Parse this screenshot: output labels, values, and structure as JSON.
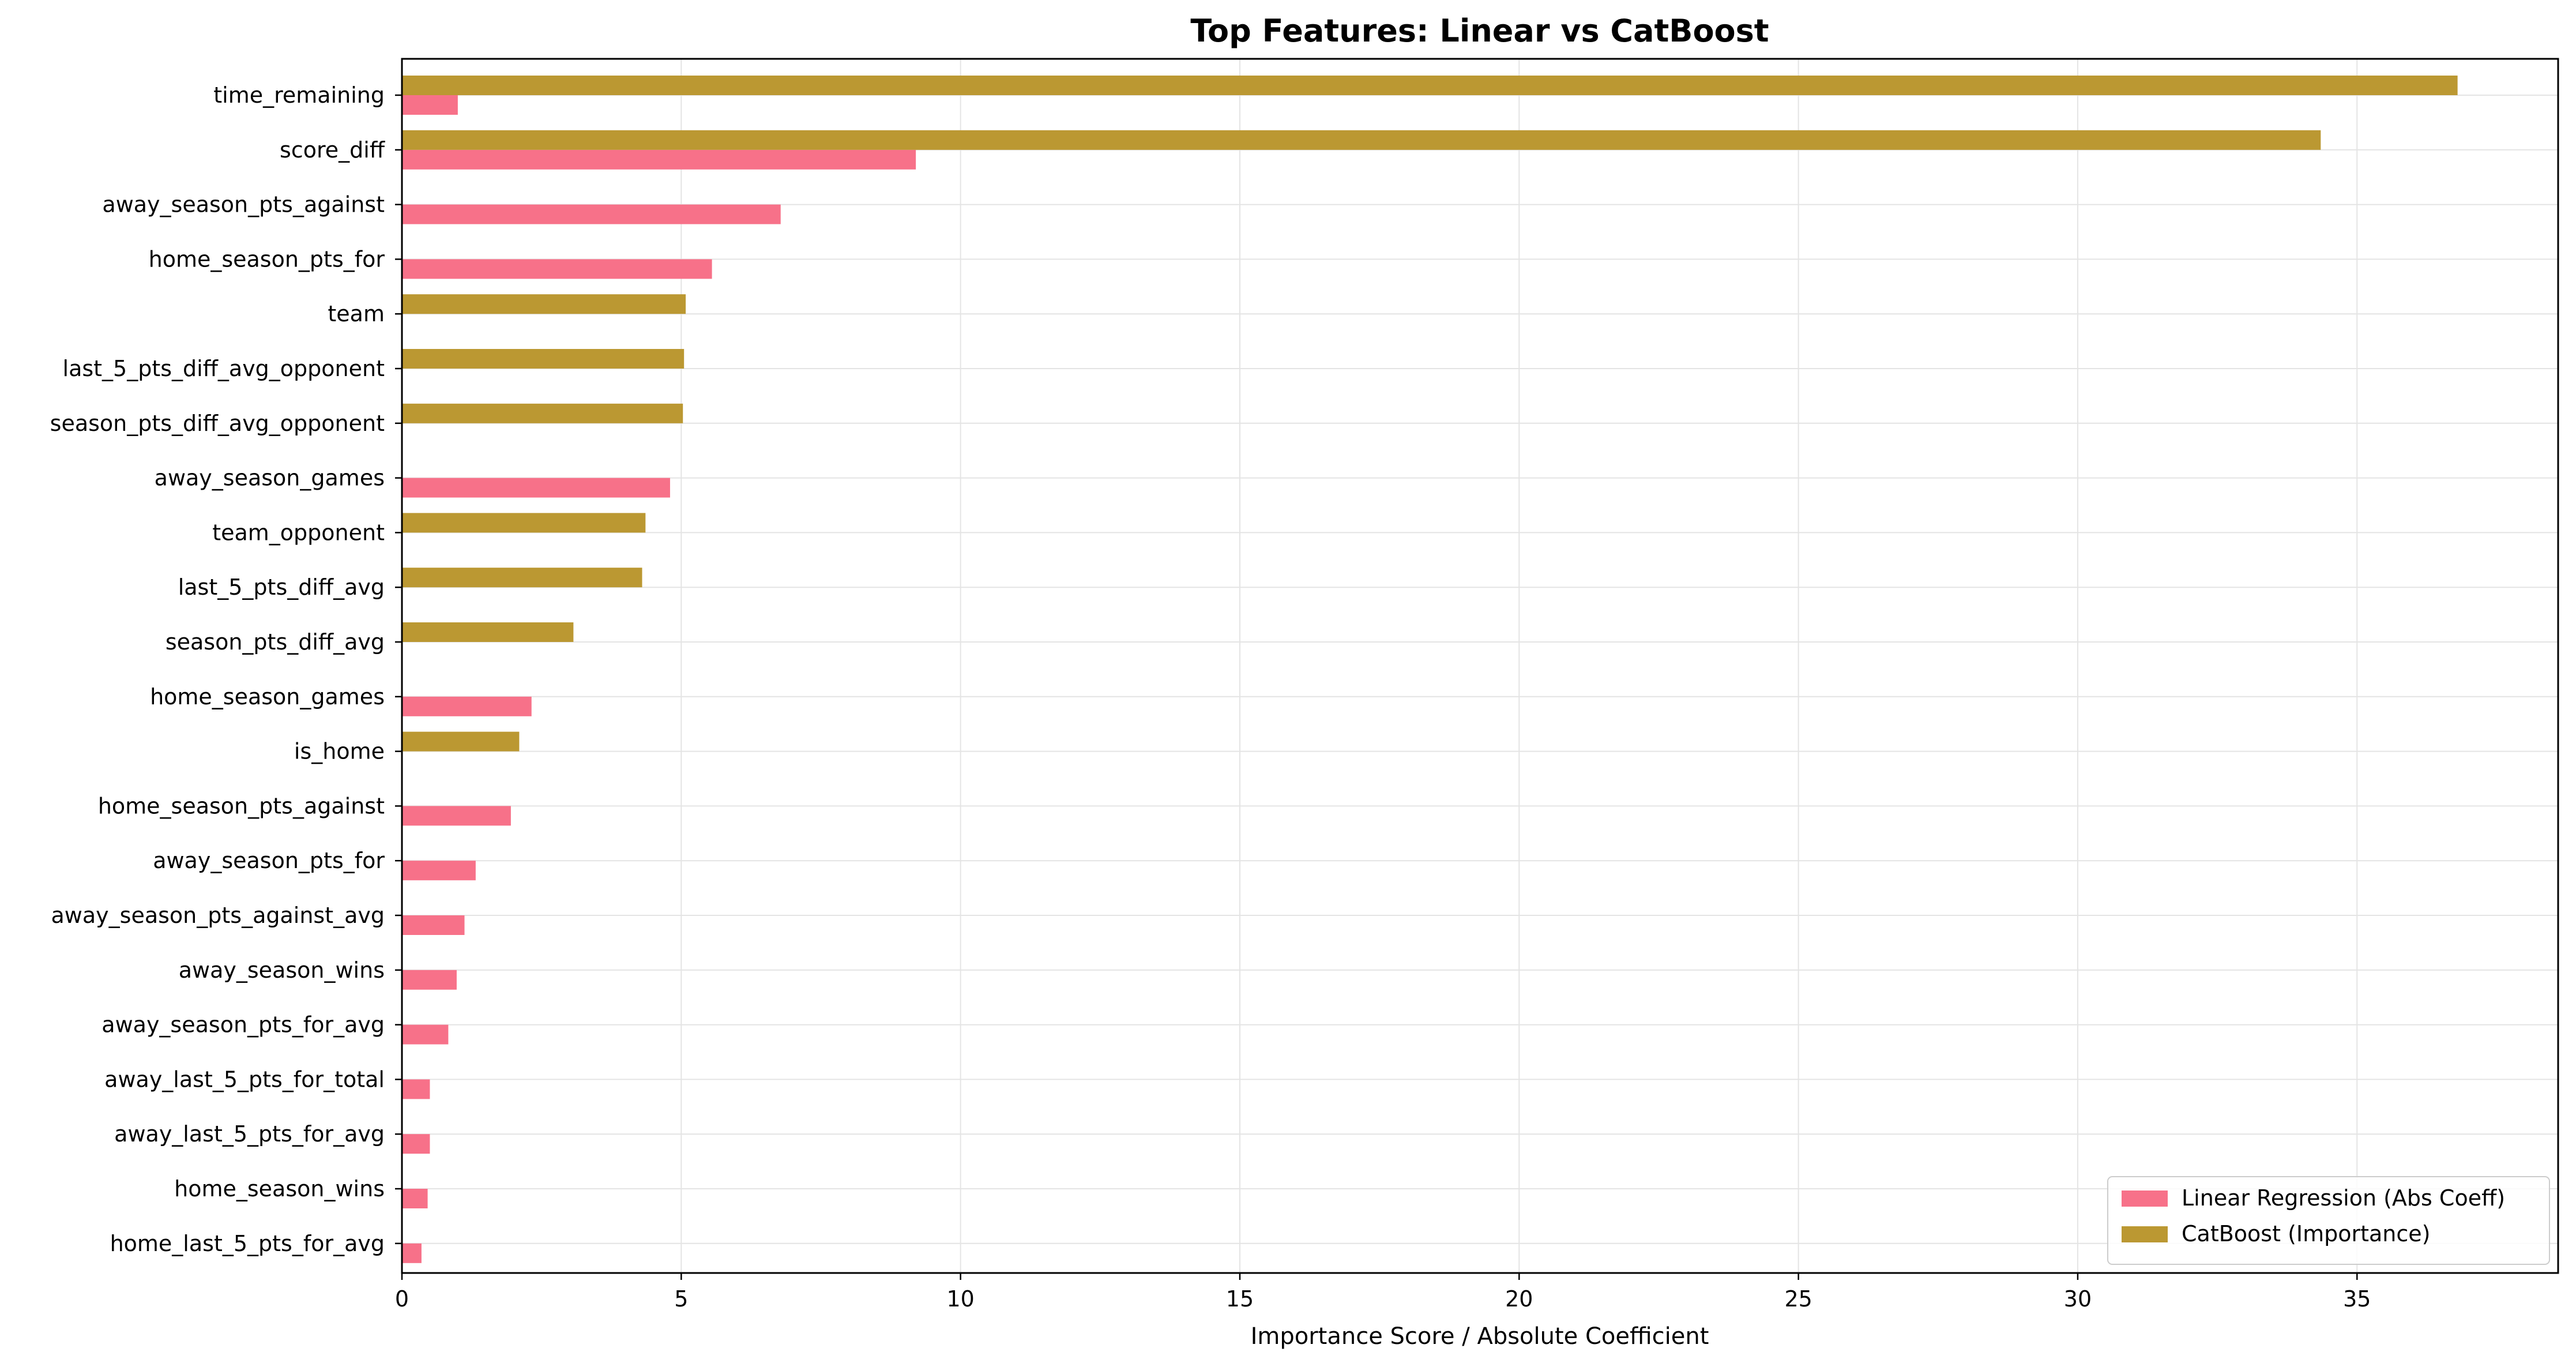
{
  "chart_data": {
    "type": "bar",
    "orientation": "horizontal",
    "title": "Top Features: Linear vs CatBoost",
    "xlabel": "Importance Score / Absolute Coefficient",
    "ylabel": "",
    "xlim": [
      0,
      38.6
    ],
    "xticks": [
      0,
      5,
      10,
      15,
      20,
      25,
      30,
      35
    ],
    "grid": true,
    "legend_position": "lower-right",
    "categories": [
      "time_remaining",
      "score_diff",
      "away_season_pts_against",
      "home_season_pts_for",
      "team",
      "last_5_pts_diff_avg_opponent",
      "season_pts_diff_avg_opponent",
      "away_season_games",
      "team_opponent",
      "last_5_pts_diff_avg",
      "season_pts_diff_avg",
      "home_season_games",
      "is_home",
      "home_season_pts_against",
      "away_season_pts_for",
      "away_season_pts_against_avg",
      "away_season_wins",
      "away_season_pts_for_avg",
      "away_last_5_pts_for_total",
      "away_last_5_pts_for_avg",
      "home_season_wins",
      "home_last_5_pts_for_avg"
    ],
    "series": [
      {
        "name": "Linear Regression (Abs Coeff)",
        "color": "#f77189",
        "values": [
          1.0,
          9.2,
          6.78,
          5.55,
          0,
          0,
          0,
          4.8,
          0,
          0,
          0,
          2.32,
          0,
          1.95,
          1.32,
          1.12,
          0.98,
          0.83,
          0.5,
          0.5,
          0.46,
          0.35
        ]
      },
      {
        "name": "CatBoost (Importance)",
        "color": "#bb9832",
        "values": [
          36.8,
          34.35,
          0,
          0,
          5.08,
          5.05,
          5.03,
          0,
          4.36,
          4.3,
          3.07,
          0,
          2.1,
          0,
          0,
          0,
          0,
          0,
          0,
          0,
          0,
          0
        ]
      }
    ]
  }
}
